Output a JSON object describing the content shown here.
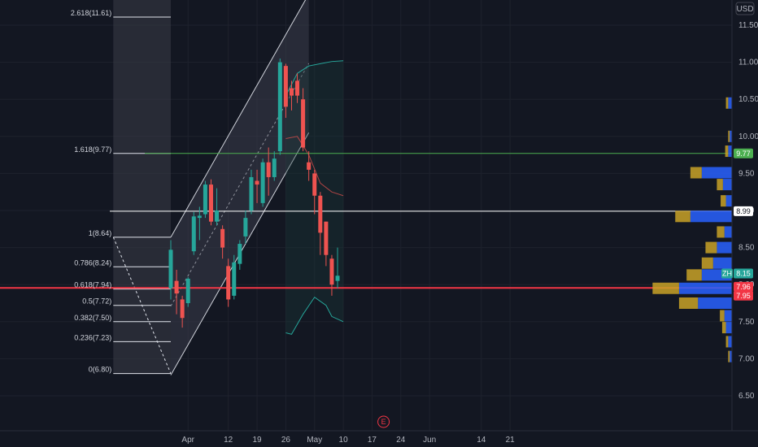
{
  "chart_data": {
    "type": "candlestick",
    "currency": "USD",
    "ylim": [
      6.35,
      11.82
    ],
    "y_ticks": [
      6.5,
      7.0,
      7.5,
      8.0,
      8.5,
      9.0,
      9.5,
      10.0,
      10.5,
      11.0,
      11.5
    ],
    "y_tick_labels": [
      "6.50",
      "7.00",
      "7.50",
      "8.00",
      "8.50",
      "9.00",
      "9.50",
      "10.00",
      "10.50",
      "11.00",
      "11.50"
    ],
    "x_labels": [
      {
        "label": "Apr",
        "i": 3
      },
      {
        "label": "12",
        "i": 10
      },
      {
        "label": "19",
        "i": 15
      },
      {
        "label": "26",
        "i": 20
      },
      {
        "label": "May",
        "i": 25
      },
      {
        "label": "10",
        "i": 30
      },
      {
        "label": "17",
        "i": 35
      },
      {
        "label": "24",
        "i": 40
      },
      {
        "label": "Jun",
        "i": 45
      },
      {
        "label": "14",
        "i": 54
      },
      {
        "label": "21",
        "i": 59
      }
    ],
    "candles": [
      {
        "i": 0,
        "o": 7.95,
        "h": 8.6,
        "l": 7.8,
        "c": 8.47
      },
      {
        "i": 1,
        "o": 8.05,
        "h": 8.2,
        "l": 7.6,
        "c": 7.88
      },
      {
        "i": 2,
        "o": 7.8,
        "h": 7.85,
        "l": 7.42,
        "c": 7.55
      },
      {
        "i": 3,
        "o": 7.75,
        "h": 8.1,
        "l": 7.7,
        "c": 8.08
      },
      {
        "i": 4,
        "o": 8.45,
        "h": 8.98,
        "l": 8.4,
        "c": 8.92
      },
      {
        "i": 5,
        "o": 8.9,
        "h": 9.05,
        "l": 8.6,
        "c": 8.93
      },
      {
        "i": 6,
        "o": 8.95,
        "h": 9.4,
        "l": 8.9,
        "c": 9.35
      },
      {
        "i": 7,
        "o": 9.35,
        "h": 9.42,
        "l": 8.8,
        "c": 8.85
      },
      {
        "i": 8,
        "o": 8.85,
        "h": 9.3,
        "l": 8.8,
        "c": 9.0
      },
      {
        "i": 9,
        "o": 8.75,
        "h": 8.8,
        "l": 8.35,
        "c": 8.5
      },
      {
        "i": 10,
        "o": 8.25,
        "h": 8.35,
        "l": 7.7,
        "c": 7.8
      },
      {
        "i": 11,
        "o": 7.85,
        "h": 8.4,
        "l": 7.8,
        "c": 8.3
      },
      {
        "i": 12,
        "o": 8.28,
        "h": 8.6,
        "l": 8.2,
        "c": 8.55
      },
      {
        "i": 13,
        "o": 8.65,
        "h": 9.0,
        "l": 8.55,
        "c": 8.9
      },
      {
        "i": 14,
        "o": 9.0,
        "h": 9.55,
        "l": 8.95,
        "c": 9.45
      },
      {
        "i": 15,
        "o": 9.4,
        "h": 9.55,
        "l": 9.1,
        "c": 9.35
      },
      {
        "i": 16,
        "o": 9.1,
        "h": 9.7,
        "l": 9.05,
        "c": 9.65
      },
      {
        "i": 17,
        "o": 9.65,
        "h": 9.85,
        "l": 9.2,
        "c": 9.45
      },
      {
        "i": 18,
        "o": 9.45,
        "h": 9.8,
        "l": 9.4,
        "c": 9.7
      },
      {
        "i": 19,
        "o": 9.8,
        "h": 11.05,
        "l": 9.75,
        "c": 11.0
      },
      {
        "i": 20,
        "o": 10.95,
        "h": 10.98,
        "l": 10.25,
        "c": 10.4
      },
      {
        "i": 21,
        "o": 10.65,
        "h": 10.75,
        "l": 10.35,
        "c": 10.55
      },
      {
        "i": 22,
        "o": 10.75,
        "h": 10.85,
        "l": 10.45,
        "c": 10.55
      },
      {
        "i": 23,
        "o": 10.5,
        "h": 10.65,
        "l": 9.8,
        "c": 9.85
      },
      {
        "i": 24,
        "o": 9.65,
        "h": 9.8,
        "l": 9.4,
        "c": 9.55
      },
      {
        "i": 25,
        "o": 9.5,
        "h": 9.55,
        "l": 8.95,
        "c": 9.2
      },
      {
        "i": 26,
        "o": 9.2,
        "h": 9.25,
        "l": 8.4,
        "c": 8.7
      },
      {
        "i": 27,
        "o": 8.85,
        "h": 8.85,
        "l": 8.25,
        "c": 8.4
      },
      {
        "i": 28,
        "o": 8.35,
        "h": 8.4,
        "l": 7.85,
        "c": 8.0
      },
      {
        "i": 29,
        "o": 8.05,
        "h": 8.5,
        "l": 7.95,
        "c": 8.12
      }
    ],
    "fibonacci_levels": [
      {
        "label": "2.618(11.61)",
        "value": 11.61
      },
      {
        "label": "1.618(9.77)",
        "value": 9.77
      },
      {
        "label": "1(8.64)",
        "value": 8.64
      },
      {
        "label": "0.786(8.24)",
        "value": 8.24
      },
      {
        "label": "0.618(7.94)",
        "value": 7.94
      },
      {
        "label": "0.5(7.72)",
        "value": 7.72
      },
      {
        "label": "0.382(7.50)",
        "value": 7.5
      },
      {
        "label": "0.236(7.23)",
        "value": 7.23
      },
      {
        "label": "0(6.80)",
        "value": 6.8
      }
    ],
    "fib_start_i": -10,
    "fib_end_i": 0,
    "horizontal_lines": [
      {
        "value": 9.77,
        "color": "#4caf50"
      },
      {
        "value": 8.99,
        "color": "#ffffff"
      },
      {
        "value": 7.955,
        "color": "#f23645"
      }
    ],
    "channel": {
      "start_i": 0,
      "start_low": 6.78,
      "start_high": 8.64,
      "end_i": 24,
      "end_low": 10.05,
      "end_high": 11.92
    },
    "projection_lines": [
      {
        "start_i": -10,
        "start_value": 8.64,
        "end_i": 0,
        "end_value": 6.8
      }
    ],
    "bands": {
      "upper": [
        {
          "i": 20,
          "v": 10.55
        },
        {
          "i": 22,
          "v": 10.85
        },
        {
          "i": 24,
          "v": 10.95
        },
        {
          "i": 26,
          "v": 10.98
        },
        {
          "i": 28,
          "v": 11.01
        },
        {
          "i": 30,
          "v": 11.02
        }
      ],
      "middle": [
        {
          "i": 20,
          "v": 9.97
        },
        {
          "i": 22,
          "v": 10.0
        },
        {
          "i": 24,
          "v": 9.75
        },
        {
          "i": 26,
          "v": 9.37
        },
        {
          "i": 28,
          "v": 9.25
        },
        {
          "i": 30,
          "v": 9.2
        }
      ],
      "lower": [
        {
          "i": 20,
          "v": 7.35
        },
        {
          "i": 21,
          "v": 7.33
        },
        {
          "i": 23,
          "v": 7.6
        },
        {
          "i": 25,
          "v": 7.83
        },
        {
          "i": 27,
          "v": 7.72
        },
        {
          "i": 28,
          "v": 7.57
        },
        {
          "i": 30,
          "v": 7.5
        }
      ]
    },
    "price_tags": [
      {
        "label": "9.77",
        "value": 9.77,
        "bg": "#4caf50",
        "fg": "#ffffff"
      },
      {
        "label": "8.99",
        "value": 8.99,
        "bg": "#ffffff",
        "fg": "#131722"
      },
      {
        "label": "8.15",
        "value": 8.15,
        "bg": "#26a69a",
        "fg": "#ffffff"
      },
      {
        "label": "7.96",
        "value": 7.96,
        "bg": "#f23645",
        "fg": "#ffffff"
      },
      {
        "label": "7.95",
        "value": 7.95,
        "bg": "#f23645",
        "fg": "#ffffff"
      }
    ],
    "zh_tag": {
      "label": "ZH",
      "value": 8.15
    },
    "volume_profile": [
      {
        "value": 10.45,
        "up": 0.05,
        "down": 0.03
      },
      {
        "value": 10.0,
        "up": 0.03,
        "down": 0.02
      },
      {
        "value": 9.8,
        "up": 0.05,
        "down": 0.04
      },
      {
        "value": 9.51,
        "up": 0.4,
        "down": 0.15
      },
      {
        "value": 9.35,
        "up": 0.12,
        "down": 0.08
      },
      {
        "value": 9.13,
        "up": 0.08,
        "down": 0.07
      },
      {
        "value": 8.92,
        "up": 0.55,
        "down": 0.2
      },
      {
        "value": 8.71,
        "up": 0.1,
        "down": 0.1
      },
      {
        "value": 8.5,
        "up": 0.2,
        "down": 0.15
      },
      {
        "value": 8.29,
        "up": 0.25,
        "down": 0.15
      },
      {
        "value": 8.13,
        "up": 0.4,
        "down": 0.2
      },
      {
        "value": 7.95,
        "up": 0.7,
        "down": 0.35
      },
      {
        "value": 7.75,
        "up": 0.45,
        "down": 0.25
      },
      {
        "value": 7.58,
        "up": 0.1,
        "down": 0.06
      },
      {
        "value": 7.42,
        "up": 0.08,
        "down": 0.05
      },
      {
        "value": 7.23,
        "up": 0.05,
        "down": 0.03
      },
      {
        "value": 7.03,
        "up": 0.03,
        "down": 0.02
      }
    ],
    "earnings_marker": {
      "label": "E",
      "i": 37
    },
    "colors": {
      "up": "#26a69a",
      "down": "#ef5350",
      "background": "#131722",
      "grid": "#1e222d",
      "fib_zone": "#3a3d47",
      "channel_fill": "#3a3d4a",
      "channel_line": "#d1d4dc",
      "band_line": "#26a69a",
      "band_mid": "#ef5350",
      "vp_up": "#2962ff",
      "vp_down": "#c9a227"
    }
  }
}
